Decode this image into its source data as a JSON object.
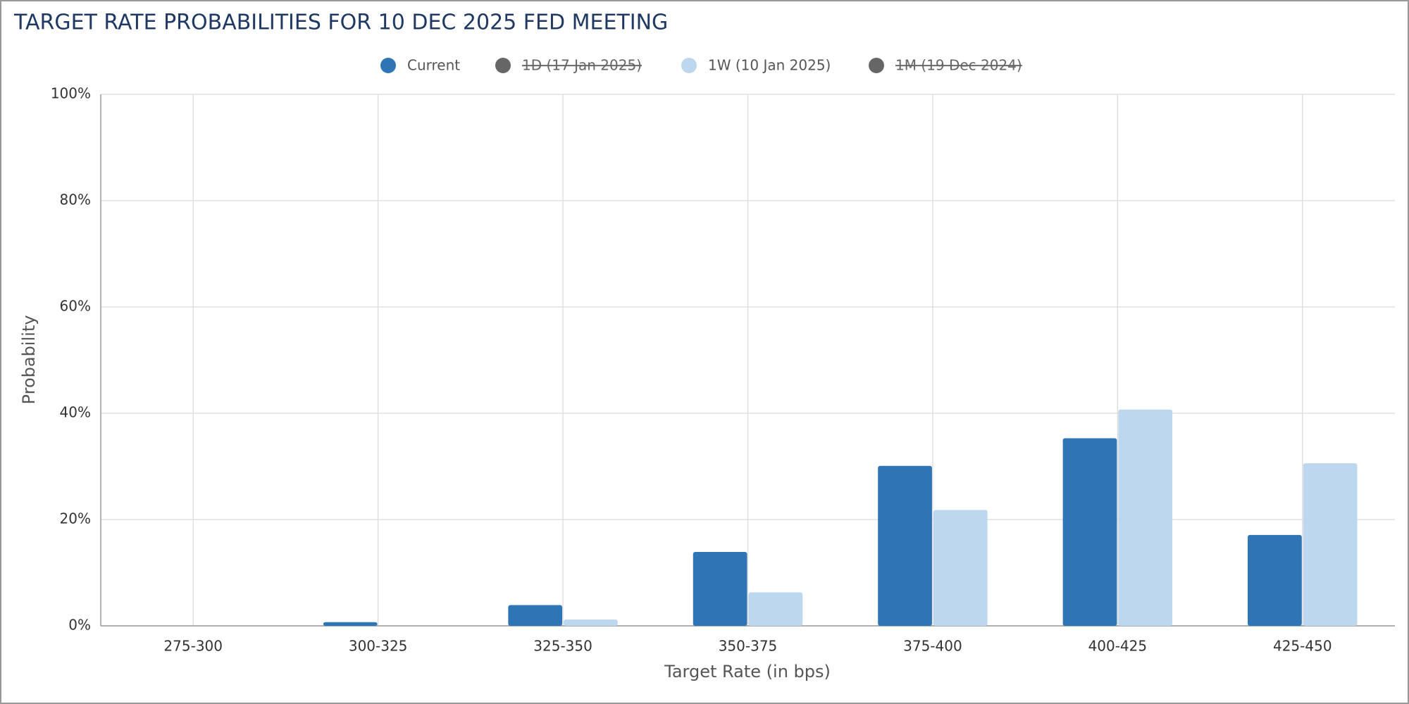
{
  "chart_data": {
    "type": "bar",
    "title": "TARGET RATE PROBABILITIES FOR 10 DEC 2025 FED MEETING",
    "x_label": "Target Rate (in bps)",
    "y_label": "Probability",
    "categories": [
      "275-300",
      "300-325",
      "325-350",
      "350-375",
      "375-400",
      "400-425",
      "425-450"
    ],
    "series": [
      {
        "name": "Current",
        "color": "#2e75b6",
        "visible": true,
        "values": [
          0,
          0.7,
          3.9,
          13.9,
          30.1,
          35.3,
          17.1
        ]
      },
      {
        "name": "1D (17 Jan 2025)",
        "color": "#666666",
        "visible": false
      },
      {
        "name": "1W (10 Jan 2025)",
        "color": "#bdd7ee",
        "visible": true,
        "values": [
          0,
          0,
          1.2,
          6.3,
          21.8,
          40.7,
          30.6
        ]
      },
      {
        "name": "1M (19 Dec 2024)",
        "color": "#666666",
        "visible": false
      }
    ],
    "ylim": [
      0,
      100
    ],
    "yticks": [
      {
        "value": 0,
        "label": "0%"
      },
      {
        "value": 20,
        "label": "20%"
      },
      {
        "value": 40,
        "label": "40%"
      },
      {
        "value": 60,
        "label": "60%"
      },
      {
        "value": 80,
        "label": "80%"
      },
      {
        "value": 100,
        "label": "100%"
      }
    ],
    "grid": true,
    "legend": "top"
  }
}
